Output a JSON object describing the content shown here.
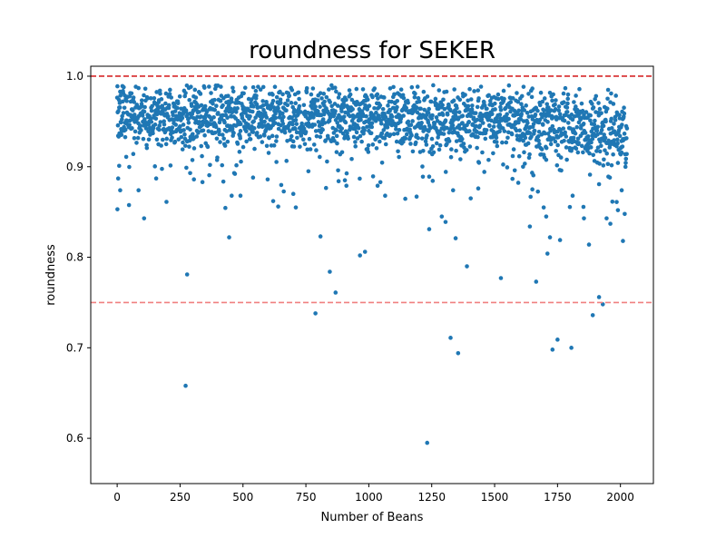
{
  "chart_data": {
    "type": "scatter",
    "title": "roundness for SEKER",
    "xlabel": "Number of Beans",
    "ylabel": "roundness",
    "xlim": [
      -105,
      2131
    ],
    "ylim": [
      0.55,
      1.011
    ],
    "xticks": [
      0,
      250,
      500,
      750,
      1000,
      1250,
      1500,
      1750,
      2000
    ],
    "yticks": [
      0.6,
      0.7,
      0.8,
      0.9,
      1.0
    ],
    "xtick_labels": [
      "0",
      "250",
      "500",
      "750",
      "1000",
      "1250",
      "1500",
      "1750",
      "2000"
    ],
    "ytick_labels": [
      "0.6",
      "0.7",
      "0.8",
      "0.9",
      "1.0"
    ],
    "grid": false,
    "point_color": "#1f77b4",
    "reference_lines": [
      {
        "y": 1.0,
        "color": "#d62728",
        "style": "dashed"
      },
      {
        "y": 0.75,
        "color": "#f08080",
        "style": "dashed"
      }
    ],
    "n_points": 2027,
    "dense_band": [
      {
        "x": 0,
        "y_center": 0.958,
        "spread": 0.018
      },
      {
        "x": 250,
        "y_center": 0.957,
        "spread": 0.019
      },
      {
        "x": 500,
        "y_center": 0.958,
        "spread": 0.018
      },
      {
        "x": 750,
        "y_center": 0.955,
        "spread": 0.019
      },
      {
        "x": 1000,
        "y_center": 0.955,
        "spread": 0.018
      },
      {
        "x": 1250,
        "y_center": 0.953,
        "spread": 0.019
      },
      {
        "x": 1500,
        "y_center": 0.952,
        "spread": 0.019
      },
      {
        "x": 1750,
        "y_center": 0.95,
        "spread": 0.02
      },
      {
        "x": 2000,
        "y_center": 0.935,
        "spread": 0.022
      }
    ],
    "outliers": [
      {
        "x": 1,
        "y": 0.853
      },
      {
        "x": 12,
        "y": 0.874
      },
      {
        "x": 4,
        "y": 0.887
      },
      {
        "x": 8,
        "y": 0.901
      },
      {
        "x": 85,
        "y": 0.874
      },
      {
        "x": 107,
        "y": 0.843
      },
      {
        "x": 155,
        "y": 0.887
      },
      {
        "x": 272,
        "y": 0.658
      },
      {
        "x": 278,
        "y": 0.781
      },
      {
        "x": 290,
        "y": 0.893
      },
      {
        "x": 305,
        "y": 0.886
      },
      {
        "x": 445,
        "y": 0.822
      },
      {
        "x": 455,
        "y": 0.868
      },
      {
        "x": 490,
        "y": 0.868
      },
      {
        "x": 465,
        "y": 0.893
      },
      {
        "x": 540,
        "y": 0.888
      },
      {
        "x": 620,
        "y": 0.862
      },
      {
        "x": 640,
        "y": 0.856
      },
      {
        "x": 700,
        "y": 0.87
      },
      {
        "x": 710,
        "y": 0.855
      },
      {
        "x": 760,
        "y": 0.895
      },
      {
        "x": 788,
        "y": 0.738
      },
      {
        "x": 808,
        "y": 0.823
      },
      {
        "x": 845,
        "y": 0.784
      },
      {
        "x": 868,
        "y": 0.761
      },
      {
        "x": 880,
        "y": 0.884
      },
      {
        "x": 905,
        "y": 0.885
      },
      {
        "x": 965,
        "y": 0.802
      },
      {
        "x": 985,
        "y": 0.806
      },
      {
        "x": 1035,
        "y": 0.879
      },
      {
        "x": 1065,
        "y": 0.868
      },
      {
        "x": 1190,
        "y": 0.867
      },
      {
        "x": 1215,
        "y": 0.889
      },
      {
        "x": 1232,
        "y": 0.595
      },
      {
        "x": 1240,
        "y": 0.831
      },
      {
        "x": 1290,
        "y": 0.845
      },
      {
        "x": 1305,
        "y": 0.839
      },
      {
        "x": 1325,
        "y": 0.711
      },
      {
        "x": 1345,
        "y": 0.821
      },
      {
        "x": 1355,
        "y": 0.694
      },
      {
        "x": 1335,
        "y": 0.874
      },
      {
        "x": 1390,
        "y": 0.79
      },
      {
        "x": 1405,
        "y": 0.865
      },
      {
        "x": 1435,
        "y": 0.876
      },
      {
        "x": 1525,
        "y": 0.777
      },
      {
        "x": 1580,
        "y": 0.896
      },
      {
        "x": 1640,
        "y": 0.834
      },
      {
        "x": 1665,
        "y": 0.773
      },
      {
        "x": 1650,
        "y": 0.875
      },
      {
        "x": 1695,
        "y": 0.855
      },
      {
        "x": 1705,
        "y": 0.845
      },
      {
        "x": 1710,
        "y": 0.804
      },
      {
        "x": 1720,
        "y": 0.822
      },
      {
        "x": 1730,
        "y": 0.698
      },
      {
        "x": 1750,
        "y": 0.709
      },
      {
        "x": 1760,
        "y": 0.819
      },
      {
        "x": 1805,
        "y": 0.7
      },
      {
        "x": 1810,
        "y": 0.868
      },
      {
        "x": 1855,
        "y": 0.843
      },
      {
        "x": 1875,
        "y": 0.814
      },
      {
        "x": 1890,
        "y": 0.736
      },
      {
        "x": 1915,
        "y": 0.756
      },
      {
        "x": 1930,
        "y": 0.748
      },
      {
        "x": 1945,
        "y": 0.843
      },
      {
        "x": 1960,
        "y": 0.837
      },
      {
        "x": 1985,
        "y": 0.861
      },
      {
        "x": 1990,
        "y": 0.852
      },
      {
        "x": 2010,
        "y": 0.818
      },
      {
        "x": 2005,
        "y": 0.874
      }
    ]
  }
}
